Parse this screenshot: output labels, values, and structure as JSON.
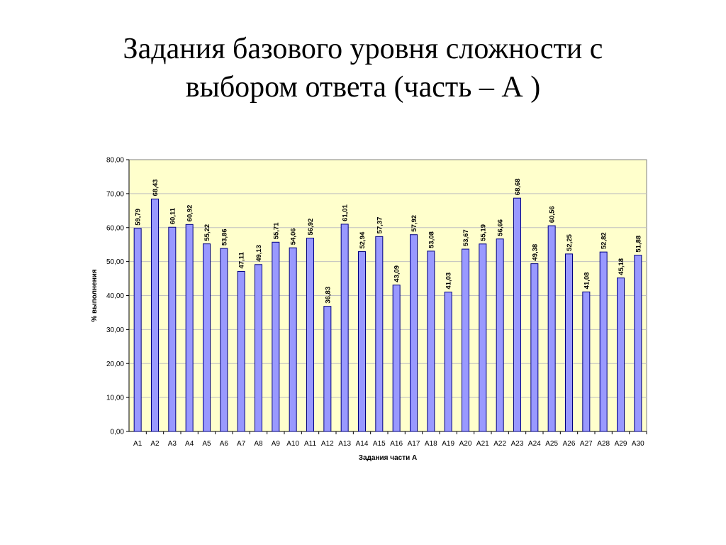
{
  "slide": {
    "title_line1": "Задания базового уровня сложности с",
    "title_line2": "выбором  ответа (часть – А )"
  },
  "chart_data": {
    "type": "bar",
    "xlabel": "Задания части А",
    "ylabel": "% выполнения",
    "ylim": [
      0,
      80
    ],
    "yticks": [
      "0,00",
      "10,00",
      "20,00",
      "30,00",
      "40,00",
      "50,00",
      "60,00",
      "70,00",
      "80,00"
    ],
    "grid": true,
    "plot_background": "#ffffcc",
    "bar_color": "#9999ff",
    "categories": [
      "А1",
      "А2",
      "А3",
      "А4",
      "А5",
      "А6",
      "А7",
      "А8",
      "А9",
      "А10",
      "А11",
      "А12",
      "А13",
      "А14",
      "А15",
      "А16",
      "А17",
      "А18",
      "А19",
      "А20",
      "А21",
      "А22",
      "А23",
      "А24",
      "А25",
      "А26",
      "А27",
      "А28",
      "А29",
      "А30"
    ],
    "values": [
      59.79,
      68.43,
      60.11,
      60.92,
      55.22,
      53.86,
      47.11,
      49.13,
      55.71,
      54.06,
      56.92,
      36.83,
      61.01,
      52.94,
      57.37,
      43.09,
      57.92,
      53.08,
      41.03,
      53.67,
      55.19,
      56.66,
      68.68,
      49.38,
      60.56,
      52.25,
      41.08,
      52.82,
      45.18,
      51.88
    ],
    "value_labels": [
      "59,79",
      "68,43",
      "60,11",
      "60,92",
      "55,22",
      "53,86",
      "47,11",
      "49,13",
      "55,71",
      "54,06",
      "56,92",
      "36,83",
      "61,01",
      "52,94",
      "57,37",
      "43,09",
      "57,92",
      "53,08",
      "41,03",
      "53,67",
      "55,19",
      "56,66",
      "68,68",
      "49,38",
      "60,56",
      "52,25",
      "41,08",
      "52,82",
      "45,18",
      "51,88"
    ]
  }
}
